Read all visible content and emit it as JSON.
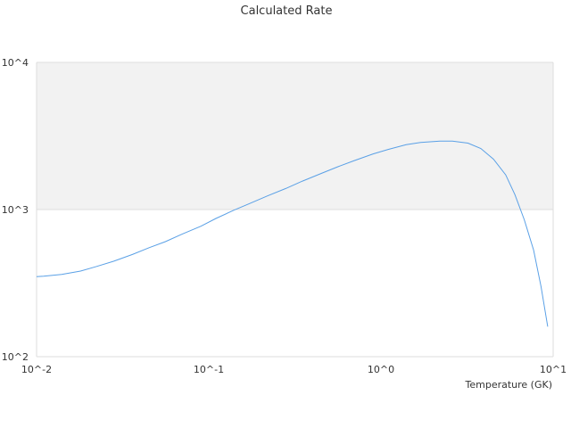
{
  "chart_data": {
    "type": "line",
    "title": "Calculated Rate",
    "xlabel": "Temperature (GK)",
    "ylabel": "",
    "xscale": "log",
    "yscale": "log",
    "xlim": [
      0.01,
      10
    ],
    "ylim": [
      100,
      10000
    ],
    "grid": false,
    "legend": "none",
    "x_ticks": [
      "10^-2",
      "10^-1",
      "10^0",
      "10^1"
    ],
    "y_ticks": [
      "10^2",
      "10^3",
      "10^4"
    ],
    "colors": {
      "line": "#5aa0e6",
      "band": "#f2f2f2",
      "axis": "#dddddd",
      "text": "#333333"
    },
    "series": [
      {
        "x": [
          0.01,
          0.011,
          0.014,
          0.018,
          0.022,
          0.028,
          0.036,
          0.045,
          0.056,
          0.07,
          0.09,
          0.11,
          0.14,
          0.17,
          0.22,
          0.28,
          0.35,
          0.45,
          0.56,
          0.7,
          0.9,
          1.1,
          1.4,
          1.7,
          2.2,
          2.6,
          3.2,
          3.8,
          4.5,
          5.3,
          6.0,
          6.8,
          7.7,
          8.5,
          9.3
        ],
        "y": [
          350,
          352,
          362,
          382,
          408,
          445,
          495,
          550,
          605,
          680,
          770,
          870,
          990,
          1090,
          1240,
          1390,
          1560,
          1760,
          1950,
          2150,
          2390,
          2560,
          2760,
          2860,
          2920,
          2920,
          2830,
          2600,
          2200,
          1720,
          1260,
          850,
          530,
          300,
          160
        ]
      }
    ]
  }
}
